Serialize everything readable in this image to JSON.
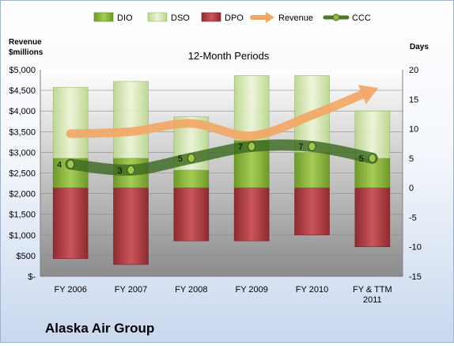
{
  "chart_data": {
    "type": "bar",
    "title": "12-Month Periods",
    "company": "Alaska Air Group",
    "left_axis": {
      "label_line1": "Revenue",
      "label_line2": "$millions",
      "range": [
        0,
        5000
      ],
      "ticks": [
        "$-",
        "$500",
        "$1,000",
        "$1,500",
        "$2,000",
        "$2,500",
        "$3,000",
        "$3,500",
        "$4,000",
        "$4,500",
        "$5,000"
      ]
    },
    "right_axis": {
      "label": "Days",
      "range": [
        -15,
        20
      ],
      "ticks": [
        "-15",
        "-10",
        "-5",
        "0",
        "5",
        "10",
        "15",
        "20"
      ]
    },
    "categories": [
      {
        "line1": "FY 2006",
        "line2": ""
      },
      {
        "line1": "FY 2007",
        "line2": ""
      },
      {
        "line1": "FY 2008",
        "line2": ""
      },
      {
        "line1": "FY 2009",
        "line2": ""
      },
      {
        "line1": "FY 2010",
        "line2": ""
      },
      {
        "line1": "FY & TTM",
        "line2": "2011"
      }
    ],
    "legend": [
      "DIO",
      "DSO",
      "DPO",
      "Revenue",
      "CCC"
    ],
    "legend_position": "top",
    "series": {
      "DIO": [
        5,
        5,
        3,
        8,
        6,
        5
      ],
      "DSO": [
        12,
        13,
        9,
        11,
        13,
        8
      ],
      "DPO": [
        -12,
        -13,
        -9,
        -9,
        -8,
        -10
      ],
      "Revenue": [
        3450,
        3500,
        3700,
        3400,
        3900,
        4500
      ],
      "CCC": [
        4,
        3,
        5,
        7,
        7,
        5
      ]
    },
    "ccc_labels": [
      "4",
      "3",
      "5",
      "7",
      "7",
      "5"
    ],
    "colors": {
      "DIO": "#8fb83c",
      "DSO": "#dcedb4",
      "DPO": "#b33a40",
      "Revenue": "#f2a766",
      "CCC": "#4a7a28"
    }
  }
}
